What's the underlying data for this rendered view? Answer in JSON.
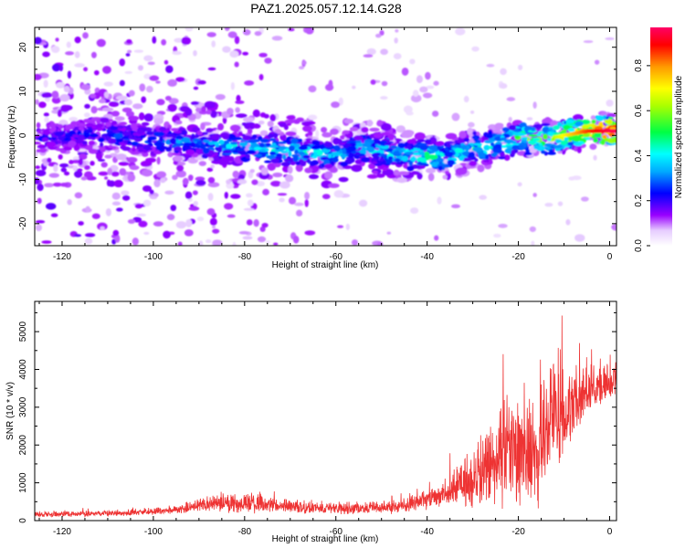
{
  "title": "PAZ1.2025.057.12.14.G28",
  "chart_data": [
    {
      "type": "heatmap",
      "xlabel": "Height of straight line (km)",
      "ylabel": "Frequency (Hz)",
      "xlim": [
        -126,
        1.5
      ],
      "ylim": [
        -25,
        24.5
      ],
      "x_ticks": [
        -120,
        -100,
        -80,
        -60,
        -40,
        -20,
        0
      ],
      "y_ticks": [
        -20,
        -10,
        0,
        10,
        20
      ],
      "colorbar": {
        "label": "Normalized spectral amplitude",
        "range": [
          0,
          0.97
        ],
        "ticks": [
          0.0,
          0.2,
          0.4,
          0.6,
          0.8
        ]
      },
      "ridge": {
        "x": [
          -126,
          -110,
          -100,
          -90,
          -80,
          -70,
          -60,
          -55,
          -50,
          -45,
          -40,
          -35,
          -30,
          -28,
          -25,
          -20,
          -15,
          -10,
          -5,
          0,
          1.5
        ],
        "freq": [
          -0.5,
          0,
          -1,
          -2,
          -2.5,
          -3.5,
          -4.5,
          -2.5,
          -3.5,
          -4.5,
          -4.5,
          -5,
          -3,
          -3,
          -2,
          -0.5,
          -1,
          0,
          1,
          1,
          1
        ],
        "amplitude": [
          0.22,
          0.28,
          0.3,
          0.35,
          0.42,
          0.45,
          0.4,
          0.38,
          0.45,
          0.45,
          0.5,
          0.45,
          0.45,
          0.5,
          0.45,
          0.6,
          0.55,
          0.7,
          0.85,
          0.95,
          0.95
        ]
      }
    },
    {
      "type": "line",
      "xlabel": "Height of straight line (km)",
      "ylabel": "SNR (10 * v/v)",
      "xlim": [
        -126,
        1.5
      ],
      "ylim": [
        0,
        5800
      ],
      "x_ticks": [
        -120,
        -100,
        -80,
        -60,
        -40,
        -20,
        0
      ],
      "y_ticks": [
        0,
        1000,
        2000,
        3000,
        4000,
        5000
      ],
      "color": "#ee3333",
      "envelope": {
        "x": [
          -126,
          -110,
          -95,
          -88,
          -80,
          -75,
          -65,
          -55,
          -45,
          -40,
          -35,
          -30,
          -25,
          -20,
          -15,
          -12,
          -10,
          -5,
          0,
          1.5
        ],
        "base": [
          150,
          170,
          250,
          400,
          400,
          350,
          300,
          280,
          350,
          500,
          700,
          900,
          1200,
          1500,
          1600,
          2600,
          2400,
          3300,
          3600,
          3600
        ],
        "amp": [
          120,
          130,
          150,
          350,
          450,
          350,
          250,
          250,
          350,
          450,
          700,
          1200,
          2000,
          2500,
          2800,
          3200,
          1800,
          900,
          900,
          900
        ]
      }
    }
  ]
}
